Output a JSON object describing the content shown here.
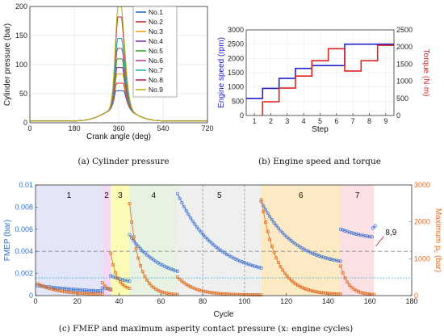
{
  "chart_data": [
    {
      "type": "line",
      "panel": "a",
      "caption": "(a) Cylinder pressure",
      "xlabel": "Crank angle (deg)",
      "ylabel": "Cylinder pressure (bar)",
      "xlim": [
        0,
        720
      ],
      "ylim": [
        0,
        200
      ],
      "xticks": [
        0,
        180,
        360,
        540,
        720
      ],
      "yticks": [
        0,
        50,
        100,
        150,
        200
      ],
      "grid": true,
      "legend_position": "top-right",
      "series": [
        {
          "name": "No.1",
          "color": "#2e6cc0",
          "peak": 55
        },
        {
          "name": "No.2",
          "color": "#cc3333",
          "peak": 68
        },
        {
          "name": "No.3",
          "color": "#f2a21b",
          "peak": 84
        },
        {
          "name": "No.4",
          "color": "#7b3fa0",
          "peak": 95
        },
        {
          "name": "No.5",
          "color": "#3fa83a",
          "peak": 110
        },
        {
          "name": "No.6",
          "color": "#c0409a",
          "peak": 128
        },
        {
          "name": "No.7",
          "color": "#20b2b2",
          "peak": 145
        },
        {
          "name": "No.8",
          "color": "#b5294a",
          "peak": 182
        },
        {
          "name": "No.9",
          "color": "#b8b31a",
          "peak": 200
        }
      ]
    },
    {
      "type": "line",
      "panel": "b",
      "caption": "(b) Engine speed and torque",
      "xlabel": "Step",
      "ylabel_left": "Engine speed (rpm)",
      "ylabel_right": "Torque (N·m)",
      "xlim": [
        0.5,
        9.5
      ],
      "ylim_left": [
        0,
        3000
      ],
      "ylim_right": [
        0,
        2500
      ],
      "xticks": [
        1,
        2,
        3,
        4,
        5,
        6,
        7,
        8,
        9
      ],
      "yticks_left": [
        0,
        500,
        1000,
        1500,
        2000,
        2500,
        3000
      ],
      "yticks_right": [
        0,
        500,
        1000,
        1500,
        2000,
        2500
      ],
      "series": [
        {
          "name": "Engine speed",
          "axis": "left",
          "color": "#2222cc",
          "x": [
            0.5,
            1.5,
            1.5,
            2.5,
            2.5,
            3.5,
            3.5,
            4.5,
            4.5,
            5.5,
            5.5,
            6.5,
            6.5,
            9.5
          ],
          "y": [
            600,
            600,
            950,
            950,
            1300,
            1300,
            1650,
            1650,
            1750,
            1750,
            1750,
            1750,
            2500,
            2500
          ]
        },
        {
          "name": "Torque",
          "axis": "right",
          "color": "#dd2222",
          "x": [
            1.5,
            1.5,
            2.5,
            2.5,
            3.5,
            3.5,
            4.5,
            4.5,
            5.5,
            5.5,
            6.5,
            6.5,
            7.5,
            7.5,
            8.5,
            8.5,
            9.5
          ],
          "y": [
            0,
            400,
            400,
            800,
            800,
            1150,
            1150,
            1600,
            1600,
            1950,
            1950,
            1300,
            1300,
            1600,
            1600,
            2050,
            2050
          ]
        }
      ]
    },
    {
      "type": "scatter",
      "panel": "c",
      "caption": "(c) FMEP  and maximum asperity contact pressure (x: engine cycles)",
      "xlabel": "Cycle",
      "ylabel_left": "FMEP (bar)",
      "ylabel_right": "Maximum p",
      "ylabel_right_sub": "c",
      "ylabel_right_unit": "(bar)",
      "xlim": [
        0,
        180
      ],
      "ylim_left": [
        0,
        0.01
      ],
      "ylim_right": [
        0,
        3000
      ],
      "xticks": [
        0,
        20,
        40,
        60,
        80,
        100,
        120,
        140,
        160,
        180
      ],
      "yticks_left": [
        0,
        0.002,
        0.004,
        0.006,
        0.008,
        0.01
      ],
      "ytick_labels_left": [
        "0",
        "0.002",
        "0.004",
        "0.006",
        "0.008",
        "0.01"
      ],
      "yticks_right": [
        0,
        1000,
        2000,
        3000
      ],
      "ref_lines": [
        {
          "axis": "left",
          "value": 0.004,
          "style": "dashed",
          "color": "#888888"
        },
        {
          "axis": "left",
          "value": 0.0016,
          "style": "dotted",
          "color": "#2aa0d8"
        }
      ],
      "regions": [
        {
          "label": "1",
          "start": 0,
          "end": 32,
          "color": "#dde2f4"
        },
        {
          "label": "2",
          "start": 32,
          "end": 36,
          "color": "#f2d2f2"
        },
        {
          "label": "3",
          "start": 36,
          "end": 45,
          "color": "#fafaa8"
        },
        {
          "label": "4",
          "start": 45,
          "end": 68,
          "color": "#e3f0de"
        },
        {
          "label": "5",
          "start": 68,
          "end": 108,
          "color": "#ececec"
        },
        {
          "label": "6",
          "start": 108,
          "end": 146,
          "color": "#fae6b8"
        },
        {
          "label": "7",
          "start": 146,
          "end": 162,
          "color": "#fadadf"
        }
      ],
      "annotation": {
        "text": "8,9",
        "x": 162,
        "y_left": 0.0052
      },
      "series": [
        {
          "name": "FMEP",
          "axis": "left",
          "color": "#3a6fd0",
          "segments": [
            {
              "x0": 1,
              "x1": 32,
              "y0": 0.0009,
              "y1": 0.0004,
              "k": 1.0,
              "n": 30
            },
            {
              "x0": 32,
              "x1": 36,
              "y0": 0.0007,
              "y1": 0.0006,
              "k": 1.0,
              "n": 4
            },
            {
              "x0": 36,
              "x1": 45,
              "y0": 0.0018,
              "y1": 0.0013,
              "k": 1.0,
              "n": 9
            },
            {
              "x0": 45,
              "x1": 68,
              "y0": 0.0055,
              "y1": 0.0022,
              "k": 1.6,
              "n": 23
            },
            {
              "x0": 68,
              "x1": 108,
              "y0": 0.0092,
              "y1": 0.0025,
              "k": 2.2,
              "n": 40
            },
            {
              "x0": 108,
              "x1": 146,
              "y0": 0.0085,
              "y1": 0.0031,
              "k": 2.4,
              "n": 38
            },
            {
              "x0": 146,
              "x1": 161,
              "y0": 0.006,
              "y1": 0.0053,
              "k": 1.0,
              "n": 15
            },
            {
              "x0": 161.5,
              "x1": 162.5,
              "y0": 0.0061,
              "y1": 0.0063,
              "k": 1.0,
              "n": 2
            }
          ]
        },
        {
          "name": "Maximum p_c",
          "axis": "right",
          "color": "#e06a1b",
          "segments": [
            {
              "x0": 1,
              "x1": 32,
              "y0": 320,
              "y1": 40,
              "k": 3.0,
              "n": 30
            },
            {
              "x0": 32,
              "x1": 36,
              "y0": 350,
              "y1": 150,
              "k": 1.0,
              "n": 4
            },
            {
              "x0": 36,
              "x1": 45,
              "y0": 1150,
              "y1": 200,
              "k": 3.0,
              "n": 9
            },
            {
              "x0": 45,
              "x1": 68,
              "y0": 2500,
              "y1": 30,
              "k": 5.0,
              "n": 23
            },
            {
              "x0": 68,
              "x1": 108,
              "y0": 500,
              "y1": 20,
              "k": 5.0,
              "n": 40
            },
            {
              "x0": 108,
              "x1": 146,
              "y0": 2600,
              "y1": 40,
              "k": 5.0,
              "n": 38
            },
            {
              "x0": 146,
              "x1": 162,
              "y0": 800,
              "y1": 30,
              "k": 4.0,
              "n": 16
            }
          ]
        }
      ]
    }
  ]
}
